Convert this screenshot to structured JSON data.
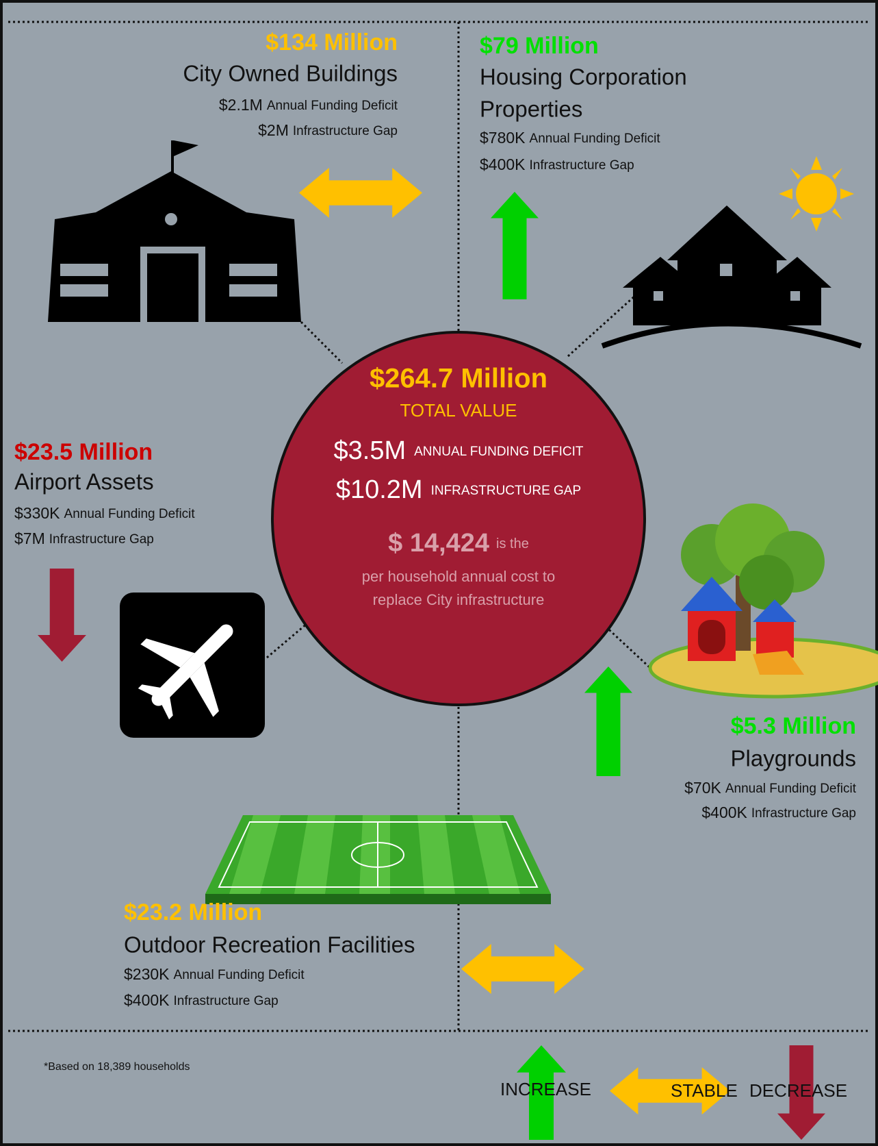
{
  "center": {
    "value": "$264.7 Million",
    "value_label": "TOTAL VALUE",
    "deficit": {
      "amount": "$3.5M",
      "label": "ANNUAL FUNDING DEFICIT"
    },
    "gap": {
      "amount": "$10.2M",
      "label": "INFRASTRUCTURE GAP"
    },
    "per_household": {
      "amount": "$ 14,424",
      "label": "is the",
      "note": [
        "per household annual cost to",
        "replace City infrastructure"
      ]
    }
  },
  "sections": [
    {
      "value": "$134 Million",
      "name": [
        "City Owned Buildings"
      ],
      "deficit": {
        "amount": "$2.1M",
        "label": "Annual Funding Deficit"
      },
      "gap": {
        "amount": "$2M",
        "label": "Infrastructure Gap"
      }
    },
    {
      "value": "$79 Million",
      "name": [
        "Housing Corporation",
        "Properties"
      ],
      "deficit": {
        "amount": "$780K",
        "label": "Annual Funding Deficit"
      },
      "gap": {
        "amount": "$400K",
        "label": "Infrastructure Gap"
      }
    },
    {
      "value": "$23.5 Million",
      "name": [
        "Airport Assets"
      ],
      "deficit": {
        "amount": "$330K",
        "label": "Annual Funding Deficit"
      },
      "gap": {
        "amount": "$7M",
        "label": "Infrastructure Gap"
      }
    },
    {
      "value": "$5.3 Million",
      "name": [
        "Playgrounds"
      ],
      "deficit": {
        "amount": "$70K",
        "label": "Annual Funding Deficit"
      },
      "gap": {
        "amount": "$400K",
        "label": "Infrastructure Gap"
      }
    },
    {
      "value": "$23.2 Million",
      "name": [
        "Outdoor Recreation Facilities"
      ],
      "deficit": {
        "amount": "$230K",
        "label": "Annual Funding Deficit"
      },
      "gap": {
        "amount": "$400K",
        "label": "Infrastructure Gap"
      }
    }
  ],
  "footnote": "*Based on 18,389 households",
  "legend": {
    "increase": "INCREASE",
    "stable": "STABLE",
    "decrease": "DECREASE"
  }
}
